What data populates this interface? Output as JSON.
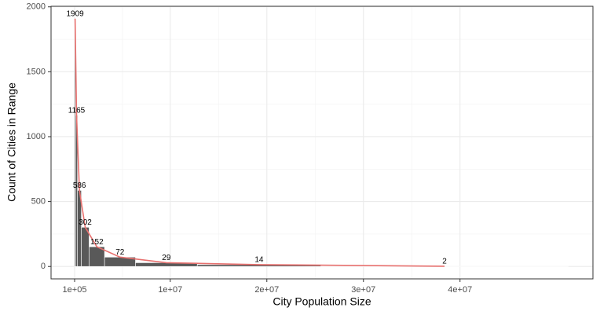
{
  "chart_data": {
    "type": "histogram",
    "x_label": "City Population Size",
    "y_label": "Count of Cities in Range",
    "bins": [
      100000,
      200000,
      400000,
      800000,
      1600000,
      3200000,
      6400000,
      12800000,
      25600000,
      51200000
    ],
    "values": [
      1909,
      1165,
      586,
      302,
      152,
      72,
      29,
      14,
      2
    ],
    "color": "#595959",
    "line_color": "#e8716f",
    "xlim": [
      -2340000,
      53760000
    ],
    "ylim": [
      -95.45,
      2004.45
    ],
    "xticks": [
      {
        "value": 100000,
        "label": "1e+05"
      },
      {
        "value": 10000000,
        "label": "1e+07"
      },
      {
        "value": 20000000,
        "label": "2e+07"
      },
      {
        "value": 30000000,
        "label": "3e+07"
      },
      {
        "value": 40000000,
        "label": "4e+07"
      }
    ],
    "yticks": [
      0,
      500,
      1000,
      1500,
      2000
    ],
    "grid": true
  }
}
